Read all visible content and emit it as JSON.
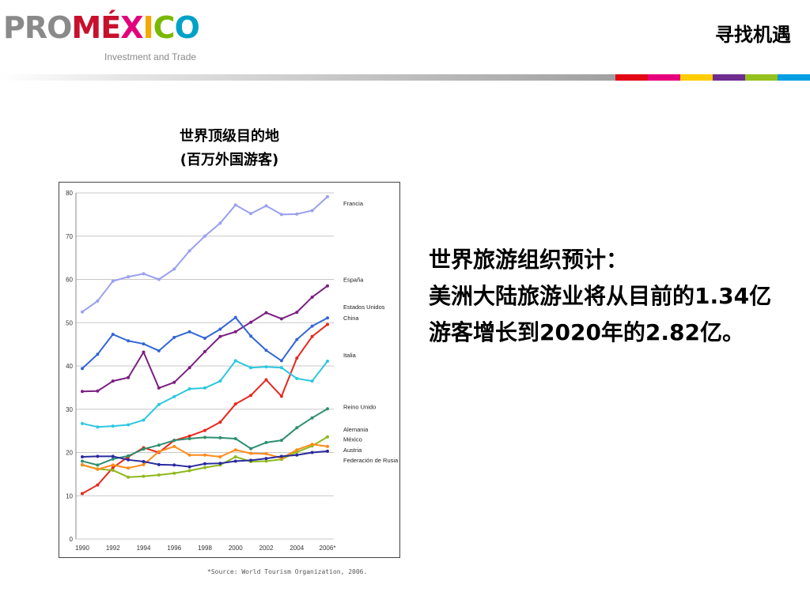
{
  "header": {
    "logo": {
      "text_pro": "PRO",
      "text_m": "M",
      "text_e": "É",
      "text_x": "X",
      "text_i": "I",
      "text_c": "C",
      "text_o": "O",
      "tagline": "Investment and Trade"
    },
    "title": "寻找机遇",
    "bar_colors": [
      "#e30613",
      "#e6007e",
      "#ffcc00",
      "#6f2c91",
      "#95c11f",
      "#009fe3"
    ]
  },
  "chart_title_line1": "世界顶级目的地",
  "chart_title_line2": "(百万外国游客)",
  "chart_data": {
    "type": "line",
    "x": [
      1990,
      1991,
      1992,
      1993,
      1994,
      1995,
      1996,
      1997,
      1998,
      1999,
      2000,
      2001,
      2002,
      2003,
      2004,
      2005,
      2006
    ],
    "x_tick_labels": [
      "1990",
      "1992",
      "1994",
      "1996",
      "1998",
      "2000",
      "2002",
      "2004",
      "2006*"
    ],
    "x_tick_values": [
      1990,
      1992,
      1994,
      1996,
      1998,
      2000,
      2002,
      2004,
      2006
    ],
    "y_ticks": [
      0,
      10,
      20,
      30,
      40,
      50,
      60,
      70,
      80
    ],
    "ylim": [
      0,
      80
    ],
    "grid": true,
    "legend": "right-end labels",
    "series": [
      {
        "name": "Francia",
        "color": "#9aa0ee",
        "values": [
          52.5,
          55,
          59.6,
          60.6,
          61.3,
          60,
          62.4,
          66.6,
          70,
          73,
          77.2,
          75.2,
          77,
          75,
          75.1,
          75.9,
          79.1
        ]
      },
      {
        "name": "España",
        "color": "#7b1f82",
        "values": [
          34.1,
          34.2,
          36.5,
          37.3,
          43.2,
          34.9,
          36.2,
          39.6,
          43.3,
          46.8,
          47.9,
          50.1,
          52.3,
          50.9,
          52.4,
          55.9,
          58.5
        ]
      },
      {
        "name": "Estados Unidos",
        "color": "#3366d6",
        "values": [
          39.4,
          42.7,
          47.3,
          45.8,
          45.1,
          43.5,
          46.6,
          47.9,
          46.4,
          48.5,
          51.2,
          46.9,
          43.6,
          41.2,
          46.1,
          49.2,
          51.1
        ]
      },
      {
        "name": "China",
        "color": "#e8281e",
        "values": [
          10.5,
          12.5,
          16.5,
          19,
          21.1,
          20,
          22.8,
          23.8,
          25.1,
          27,
          31.2,
          33.2,
          36.8,
          33,
          41.8,
          46.8,
          49.6
        ]
      },
      {
        "name": "Italia",
        "color": "#2bc8e0",
        "values": [
          26.7,
          25.9,
          26.1,
          26.4,
          27.5,
          31.1,
          32.9,
          34.7,
          34.9,
          36.5,
          41.2,
          39.6,
          39.8,
          39.6,
          37.1,
          36.5,
          41.1
        ]
      },
      {
        "name": "Reino Unido",
        "color": "#2e8f6e",
        "values": [
          18,
          17.1,
          18.5,
          19.2,
          20.8,
          21.7,
          22.8,
          23.2,
          23.5,
          23.4,
          23.2,
          20.9,
          22.3,
          22.8,
          25.7,
          28,
          30.1
        ]
      },
      {
        "name": "Alemania",
        "color": "#8fb81e",
        "values": [
          17.1,
          16.2,
          15.9,
          14.3,
          14.5,
          14.8,
          15.2,
          15.8,
          16.5,
          17.1,
          19,
          17.9,
          18,
          18.4,
          20.1,
          21.5,
          23.6
        ]
      },
      {
        "name": "México",
        "color": "#ff8c1a",
        "values": [
          17.2,
          16.1,
          17.1,
          16.4,
          17.2,
          20.2,
          21.4,
          19.4,
          19.4,
          19,
          20.6,
          19.8,
          19.7,
          18.7,
          20.6,
          21.9,
          21.4
        ]
      },
      {
        "name": "Austria",
        "color": "#2a2a9e",
        "values": [
          19,
          19.1,
          19.1,
          18.3,
          17.9,
          17.2,
          17.1,
          16.7,
          17.4,
          17.5,
          18,
          18.2,
          18.6,
          19.1,
          19.4,
          20,
          20.3
        ]
      },
      {
        "name": "Federación de Rusia",
        "color": "#ff33cc",
        "values": [
          null,
          null,
          null,
          null,
          null,
          null,
          null,
          null,
          null,
          null,
          null,
          null,
          null,
          null,
          null,
          null,
          null
        ]
      }
    ],
    "source_note": "*Source: World Tourism Organization, 2006."
  },
  "forecast": {
    "heading": "世界旅游组织预计：",
    "body": "美洲大陆旅游业将从目前的1.34亿游客增长到2020年的2.82亿。"
  }
}
